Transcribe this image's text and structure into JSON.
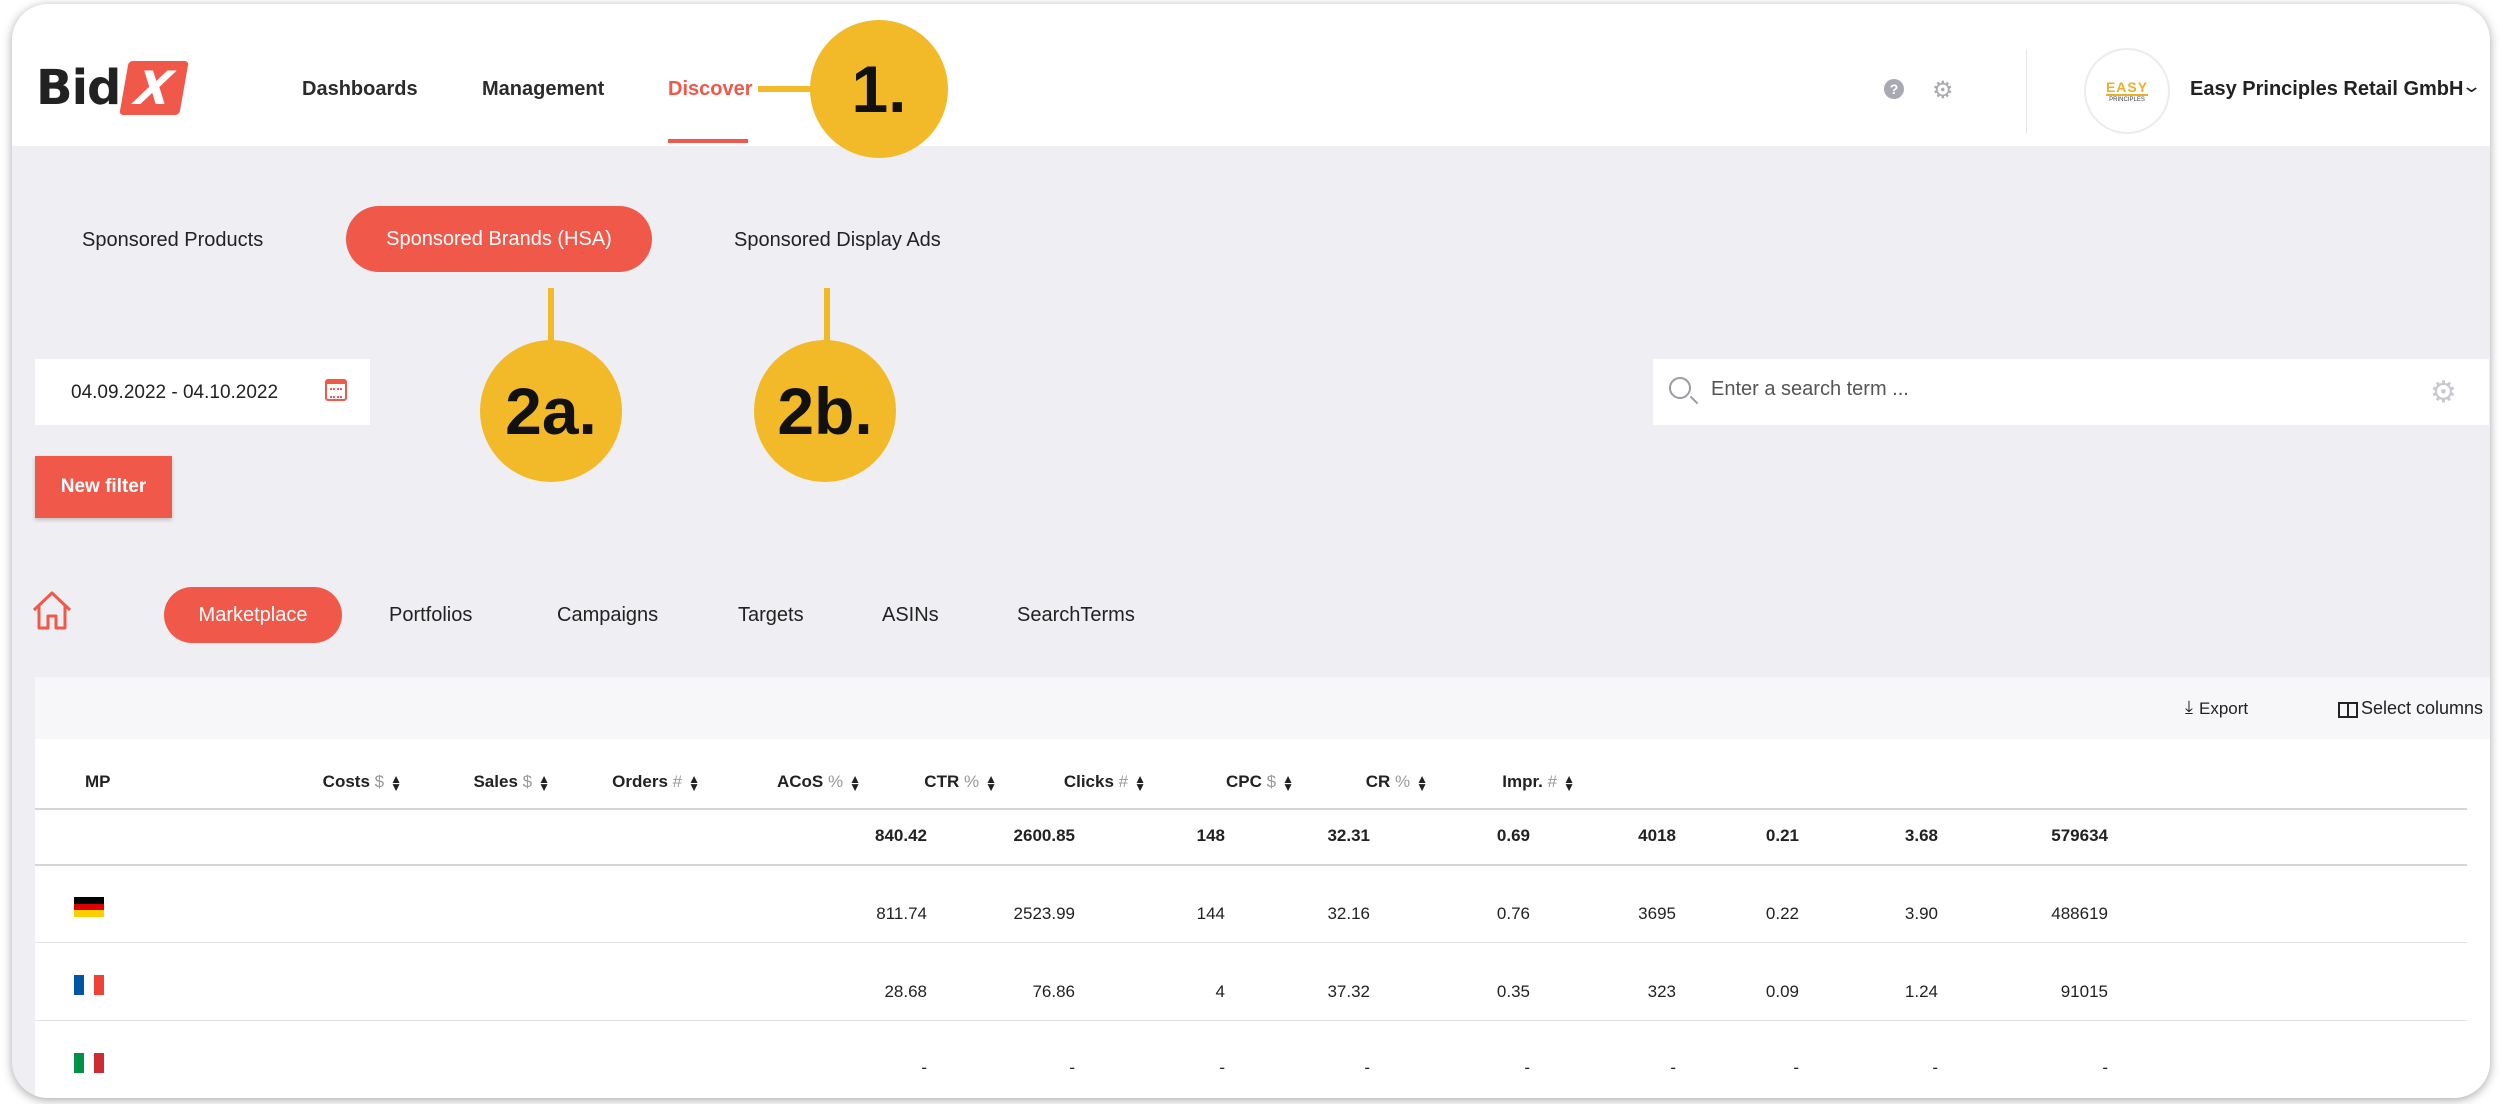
{
  "logo": {
    "text": "Bid",
    "mark": "X"
  },
  "nav": {
    "dashboards": "Dashboards",
    "management": "Management",
    "discover": "Discover"
  },
  "header": {
    "help_icon": "help-circle-icon",
    "settings_icon": "gear-icon",
    "avatar_main": "EASY",
    "avatar_sub": "PRINCIPLES",
    "account_name": "Easy Principles Retail GmbH",
    "chevron": "chevron-down-icon"
  },
  "callouts": {
    "one": "1.",
    "two_a": "2a.",
    "two_b": "2b."
  },
  "ad_types": {
    "sponsored_products": "Sponsored Products",
    "sponsored_brands": "Sponsored Brands (HSA)",
    "sponsored_display": "Sponsored Display Ads"
  },
  "date_range": "04.09.2022 - 04.10.2022",
  "search": {
    "placeholder": "Enter a search term ..."
  },
  "new_filter": "New filter",
  "levels": {
    "marketplace": "Marketplace",
    "portfolios": "Portfolios",
    "campaigns": "Campaigns",
    "targets": "Targets",
    "asins": "ASINs",
    "searchterms": "SearchTerms"
  },
  "toolbar": {
    "export": "Export",
    "select_columns": "Select columns"
  },
  "table": {
    "columns": [
      {
        "label": "MP",
        "unit": ""
      },
      {
        "label": "Costs",
        "unit": "$"
      },
      {
        "label": "Sales",
        "unit": "$"
      },
      {
        "label": "Orders",
        "unit": "#"
      },
      {
        "label": "ACoS",
        "unit": "%"
      },
      {
        "label": "CTR",
        "unit": "%"
      },
      {
        "label": "Clicks",
        "unit": "#"
      },
      {
        "label": "CPC",
        "unit": "$"
      },
      {
        "label": "CR",
        "unit": "%"
      },
      {
        "label": "Impr.",
        "unit": "#"
      }
    ],
    "total": [
      "840.42",
      "2600.85",
      "148",
      "32.31",
      "0.69",
      "4018",
      "0.21",
      "3.68",
      "579634"
    ],
    "rows": [
      {
        "flag": "germany",
        "colors": [
          "#000000",
          "#dd0000",
          "#ffce00"
        ],
        "values": [
          "811.74",
          "2523.99",
          "144",
          "32.16",
          "0.76",
          "3695",
          "0.22",
          "3.90",
          "488619"
        ]
      },
      {
        "flag": "france",
        "colors": [
          "#0055a4",
          "#ffffff",
          "#ef4135"
        ],
        "values": [
          "28.68",
          "76.86",
          "4",
          "37.32",
          "0.35",
          "323",
          "0.09",
          "1.24",
          "91015"
        ]
      },
      {
        "flag": "italy",
        "colors": [
          "#009246",
          "#ffffff",
          "#ce2b37"
        ],
        "values": [
          "-",
          "-",
          "-",
          "-",
          "-",
          "-",
          "-",
          "-",
          "-"
        ]
      }
    ]
  },
  "colors": {
    "accent": "#f0584a",
    "callout": "#f2b928",
    "background": "#efeff3"
  }
}
